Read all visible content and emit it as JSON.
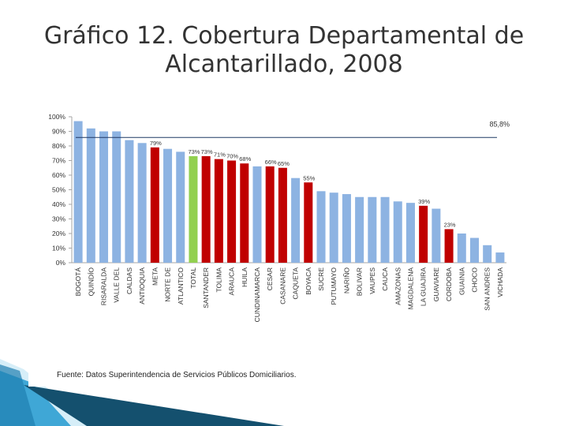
{
  "slide": {
    "title_line1": "Gráfico 12. Cobertura Departamental de",
    "title_line2": "Alcantarillado, 2008",
    "source": "Fuente: Datos Superintendencia de Servicios Públicos Domiciliarios."
  },
  "colors": {
    "default_bar": "#8db3e2",
    "highlight_bar": "#c00000",
    "total_bar": "#92d050",
    "reference_line": "#1f3864"
  },
  "chart_data": {
    "type": "bar",
    "title": "",
    "xlabel": "",
    "ylabel": "",
    "ylim": [
      0,
      100
    ],
    "ytick_labels": [
      "0%",
      "10%",
      "20%",
      "30%",
      "40%",
      "50%",
      "60%",
      "70%",
      "80%",
      "90%",
      "100%"
    ],
    "grid": false,
    "categories": [
      "BOGOTÁ",
      "QUINDÍO",
      "RISARALDA",
      "VALLE DEL",
      "CALDAS",
      "ANTIOQUIA",
      "META",
      "NORTE DE",
      "ATLANTICO",
      "TOTAL",
      "SANTANDER",
      "TOLIMA",
      "ARAUCA",
      "HUILA",
      "CUNDINAMARCA",
      "CESAR",
      "CASANARE",
      "CAQUETA",
      "BOYACA",
      "SUCRE",
      "PUTUMAYO",
      "NARIÑO",
      "BOLIVAR",
      "VAUPES",
      "CAUCA",
      "AMAZONAS",
      "MAGDALENA",
      "LA GUAJIRA",
      "GUAVIARE",
      "CORDOBA",
      "GUAINIA",
      "CHOCO",
      "SAN ANDRES",
      "VICHADA"
    ],
    "values": [
      97,
      92,
      90,
      90,
      84,
      82,
      79,
      78,
      76,
      73,
      73,
      71,
      70,
      68,
      66,
      66,
      65,
      58,
      55,
      49,
      48,
      47,
      45,
      45,
      45,
      42,
      41,
      39,
      37,
      23,
      20,
      17,
      12,
      7
    ],
    "bar_colors": [
      "default",
      "default",
      "default",
      "default",
      "default",
      "default",
      "highlight",
      "default",
      "default",
      "total",
      "highlight",
      "highlight",
      "highlight",
      "highlight",
      "default",
      "highlight",
      "highlight",
      "default",
      "highlight",
      "default",
      "default",
      "default",
      "default",
      "default",
      "default",
      "default",
      "default",
      "highlight",
      "default",
      "highlight",
      "default",
      "default",
      "default",
      "default"
    ],
    "data_labels": [
      null,
      null,
      null,
      null,
      null,
      null,
      "79%",
      null,
      null,
      "73%",
      "73%",
      "71%",
      "70%",
      "68%",
      null,
      "66%",
      "65%",
      null,
      "55%",
      null,
      null,
      null,
      null,
      null,
      null,
      null,
      null,
      "39%",
      null,
      "23%",
      null,
      null,
      null,
      null
    ],
    "reference_line": {
      "value": 85.8,
      "label": "85,8%"
    }
  }
}
